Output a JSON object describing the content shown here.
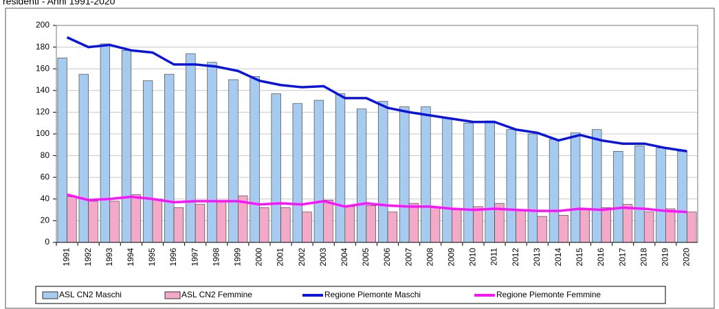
{
  "chart_data": {
    "type": "bar",
    "title": "residenti - Anni 1991-2020",
    "categories": [
      "1991",
      "1992",
      "1993",
      "1994",
      "1995",
      "1996",
      "1997",
      "1998",
      "1999",
      "2000",
      "2001",
      "2002",
      "2003",
      "2004",
      "2005",
      "2006",
      "2007",
      "2008",
      "2009",
      "2010",
      "2011",
      "2012",
      "2013",
      "2014",
      "2015",
      "2016",
      "2017",
      "2018",
      "2019",
      "2020"
    ],
    "series": [
      {
        "name": "ASL CN2 Maschi",
        "type": "bar",
        "color": "#a7cbef",
        "values": [
          170,
          155,
          183,
          177,
          149,
          155,
          174,
          166,
          150,
          153,
          137,
          128,
          131,
          137,
          123,
          130,
          125,
          125,
          115,
          110,
          112,
          104,
          100,
          95,
          101,
          104,
          84,
          89,
          87,
          84
        ]
      },
      {
        "name": "ASL CN2 Femmine",
        "type": "bar",
        "color": "#f3a9c8",
        "values": [
          42,
          38,
          38,
          44,
          40,
          32,
          35,
          38,
          43,
          32,
          32,
          28,
          39,
          33,
          34,
          28,
          36,
          32,
          30,
          33,
          36,
          30,
          24,
          25,
          30,
          32,
          35,
          28,
          31,
          28
        ]
      },
      {
        "name": "Regione Piemonte Maschi",
        "type": "line",
        "color": "#0a14e0",
        "values": [
          189,
          180,
          182,
          177,
          175,
          164,
          164,
          162,
          158,
          149,
          145,
          143,
          144,
          133,
          133,
          124,
          120,
          117,
          114,
          111,
          111,
          104,
          101,
          94,
          99,
          94,
          91,
          91,
          87,
          84
        ]
      },
      {
        "name": "Regione Piemonte Femmine",
        "type": "line",
        "color": "#ff10ff",
        "values": [
          44,
          39,
          40,
          42,
          40,
          37,
          38,
          38,
          38,
          35,
          36,
          35,
          38,
          33,
          36,
          34,
          33,
          33,
          31,
          30,
          31,
          30,
          29,
          29,
          31,
          30,
          32,
          31,
          29,
          28
        ]
      }
    ],
    "ylim": [
      0,
      200
    ],
    "yticks": [
      0,
      20,
      40,
      60,
      80,
      100,
      120,
      140,
      160,
      180,
      200
    ],
    "grid": true
  }
}
